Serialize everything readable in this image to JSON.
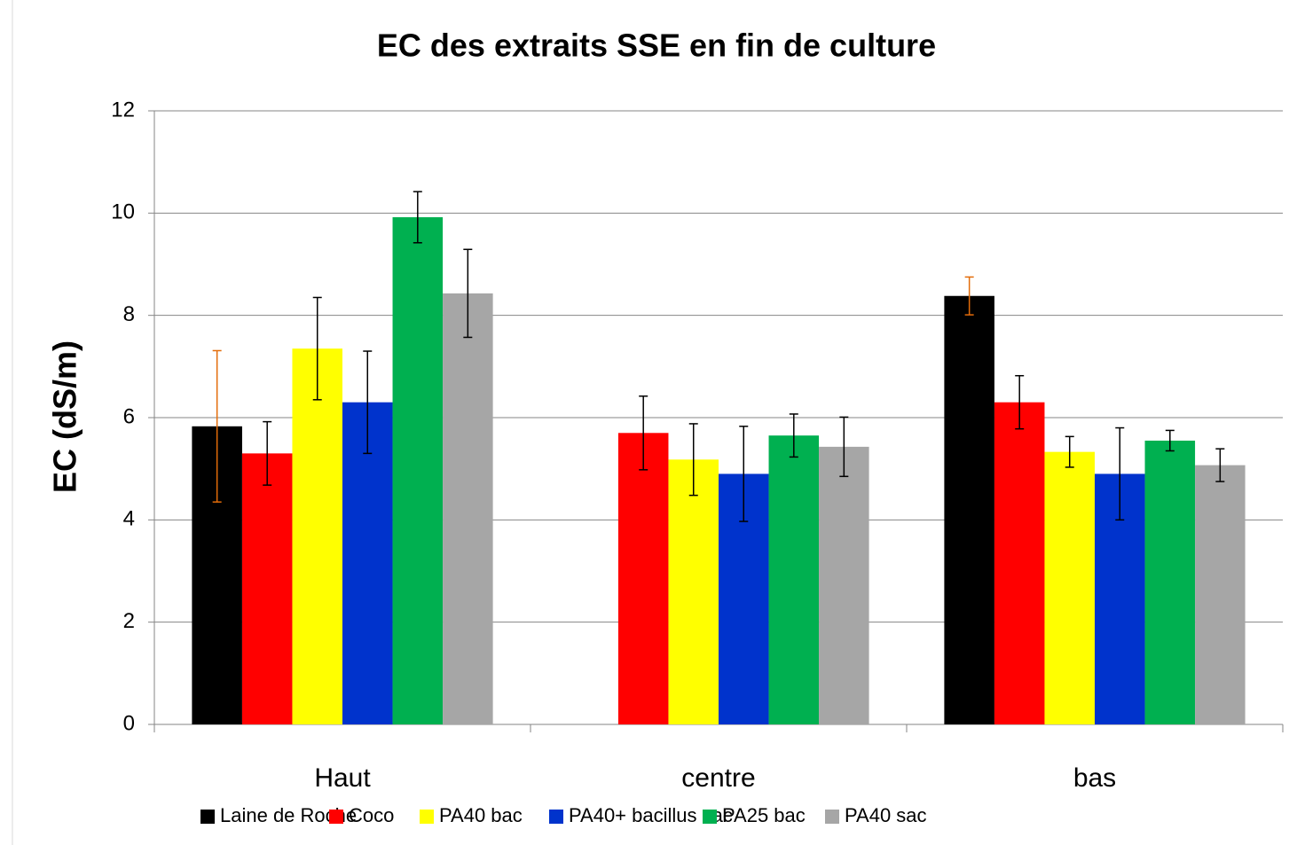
{
  "chart_data": {
    "type": "bar",
    "title": "EC des extraits SSE en fin de culture",
    "y_label": "EC (dS/m)",
    "categories": [
      "Haut",
      "centre",
      "bas"
    ],
    "series": [
      {
        "name": "Laine de Roche",
        "color": "#000000",
        "error_color": "#e36c09",
        "values": [
          5.83,
          null,
          8.38
        ],
        "errors": [
          1.48,
          null,
          0.37
        ]
      },
      {
        "name": "Coco",
        "color": "#ff0000",
        "error_color": "#000000",
        "values": [
          5.3,
          5.7,
          6.3
        ],
        "errors": [
          0.62,
          0.72,
          0.52
        ]
      },
      {
        "name": "PA40 bac",
        "color": "#ffff00",
        "error_color": "#000000",
        "values": [
          7.35,
          5.18,
          5.33
        ],
        "errors": [
          1.0,
          0.7,
          0.3
        ]
      },
      {
        "name": "PA40+ bacillus sac",
        "color": "#0033cc",
        "error_color": "#000000",
        "values": [
          6.3,
          4.9,
          4.9
        ],
        "errors": [
          1.0,
          0.93,
          0.9
        ]
      },
      {
        "name": "PA25 bac",
        "color": "#00b050",
        "error_color": "#000000",
        "values": [
          9.92,
          5.65,
          5.55
        ],
        "errors": [
          0.5,
          0.42,
          0.2
        ]
      },
      {
        "name": "PA40 sac",
        "color": "#a6a6a6",
        "error_color": "#000000",
        "values": [
          8.43,
          5.43,
          5.07
        ],
        "errors": [
          0.86,
          0.58,
          0.32
        ]
      }
    ],
    "ylim": [
      0,
      12
    ],
    "yticks": [
      0,
      2,
      4,
      6,
      8,
      10,
      12
    ],
    "grid": true,
    "legend": "bottom"
  }
}
